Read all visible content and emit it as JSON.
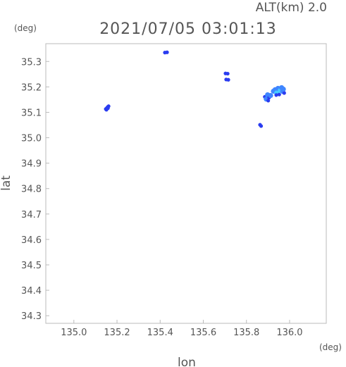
{
  "header": {
    "altitude": "ALT(km)  2.0",
    "timestamp": "2021/07/05 03:01:13"
  },
  "chart_data": {
    "type": "scatter",
    "title": "2021/07/05 03:01:13",
    "xlabel": "lon",
    "ylabel": "lat",
    "xunit": "(deg)",
    "yunit": "(deg)",
    "xlim": [
      134.87,
      136.17
    ],
    "ylim": [
      34.27,
      35.37
    ],
    "xticks": [
      "135.0",
      "135.2",
      "135.4",
      "135.6",
      "135.8",
      "136.0"
    ],
    "yticks": [
      "34.3",
      "34.4",
      "34.5",
      "34.6",
      "34.7",
      "34.8",
      "34.9",
      "35.0",
      "35.1",
      "35.2",
      "35.3"
    ],
    "grid": false,
    "colors": {
      "echo_low": "#2a3cf0",
      "echo_mid": "#3f86ff",
      "echo_high": "#44ccff",
      "axis": "#bbbbbb",
      "text": "#555555"
    },
    "points": [
      {
        "lon": 135.148,
        "lat": 35.113,
        "level": 1
      },
      {
        "lon": 135.153,
        "lat": 35.117,
        "level": 1
      },
      {
        "lon": 135.157,
        "lat": 35.121,
        "level": 1
      },
      {
        "lon": 135.161,
        "lat": 35.124,
        "level": 1
      },
      {
        "lon": 135.151,
        "lat": 35.11,
        "level": 1
      },
      {
        "lon": 135.158,
        "lat": 35.116,
        "level": 1
      },
      {
        "lon": 135.422,
        "lat": 35.335,
        "level": 1
      },
      {
        "lon": 135.432,
        "lat": 35.336,
        "level": 1
      },
      {
        "lon": 135.703,
        "lat": 35.253,
        "level": 1
      },
      {
        "lon": 135.713,
        "lat": 35.252,
        "level": 1
      },
      {
        "lon": 135.706,
        "lat": 35.229,
        "level": 1
      },
      {
        "lon": 135.716,
        "lat": 35.228,
        "level": 1
      },
      {
        "lon": 135.863,
        "lat": 35.051,
        "level": 1
      },
      {
        "lon": 135.868,
        "lat": 35.046,
        "level": 1
      },
      {
        "lon": 135.885,
        "lat": 35.161,
        "level": 1
      },
      {
        "lon": 135.892,
        "lat": 35.152,
        "level": 2
      },
      {
        "lon": 135.898,
        "lat": 35.169,
        "level": 2
      },
      {
        "lon": 135.905,
        "lat": 35.158,
        "level": 1
      },
      {
        "lon": 135.901,
        "lat": 35.146,
        "level": 1
      },
      {
        "lon": 135.912,
        "lat": 35.166,
        "level": 2
      },
      {
        "lon": 135.925,
        "lat": 35.183,
        "level": 2
      },
      {
        "lon": 135.933,
        "lat": 35.189,
        "level": 2
      },
      {
        "lon": 135.94,
        "lat": 35.176,
        "level": 3
      },
      {
        "lon": 135.946,
        "lat": 35.194,
        "level": 2
      },
      {
        "lon": 135.952,
        "lat": 35.17,
        "level": 1
      },
      {
        "lon": 135.957,
        "lat": 35.186,
        "level": 3
      },
      {
        "lon": 135.963,
        "lat": 35.197,
        "level": 2
      },
      {
        "lon": 135.968,
        "lat": 35.182,
        "level": 2
      },
      {
        "lon": 135.975,
        "lat": 35.176,
        "level": 1
      },
      {
        "lon": 135.971,
        "lat": 35.191,
        "level": 2
      },
      {
        "lon": 135.938,
        "lat": 35.168,
        "level": 1
      }
    ]
  }
}
